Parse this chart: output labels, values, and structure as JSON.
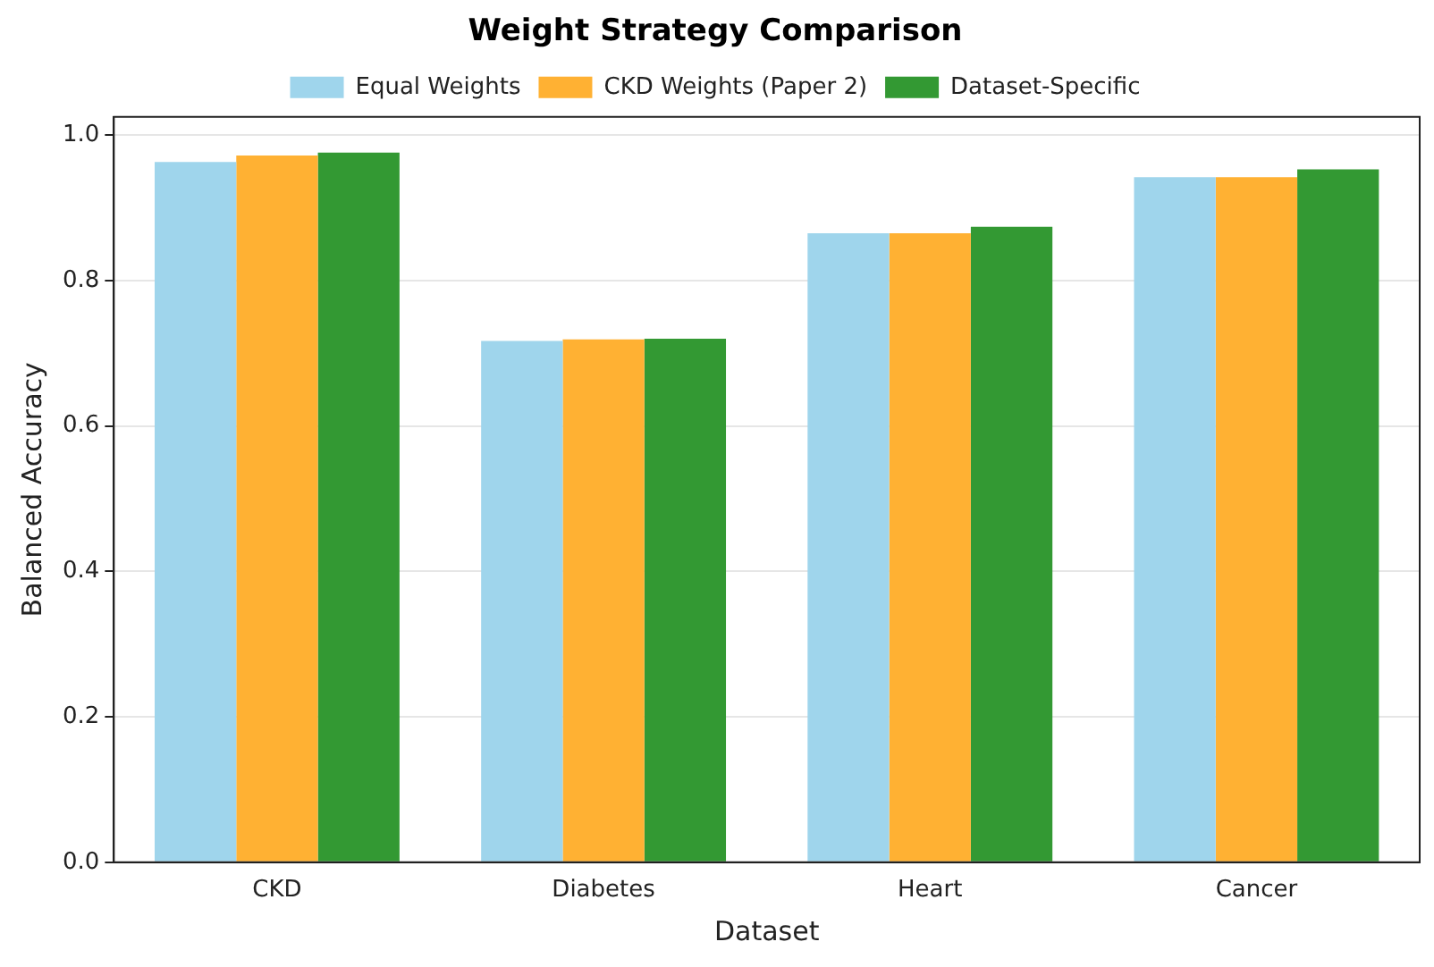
{
  "chart_data": {
    "type": "bar",
    "title": "Weight Strategy Comparison",
    "xlabel": "Dataset",
    "ylabel": "Balanced Accuracy",
    "categories": [
      "CKD",
      "Diabetes",
      "Heart",
      "Cancer"
    ],
    "series": [
      {
        "name": "Equal Weights",
        "color": "#9fd5ec",
        "values": [
          0.963,
          0.717,
          0.865,
          0.942
        ]
      },
      {
        "name": "CKD Weights (Paper 2)",
        "color": "#ffb133",
        "values": [
          0.972,
          0.719,
          0.865,
          0.942
        ]
      },
      {
        "name": "Dataset-Specific",
        "color": "#339933",
        "values": [
          0.976,
          0.72,
          0.874,
          0.953
        ]
      }
    ],
    "ylim": [
      0,
      1.025
    ],
    "yticks": [
      {
        "value": 0,
        "label": "0.0"
      },
      0.2,
      0.4,
      0.6,
      0.8,
      {
        "value": 1,
        "label": "1.0"
      }
    ],
    "grid": "y",
    "legend": "top"
  }
}
